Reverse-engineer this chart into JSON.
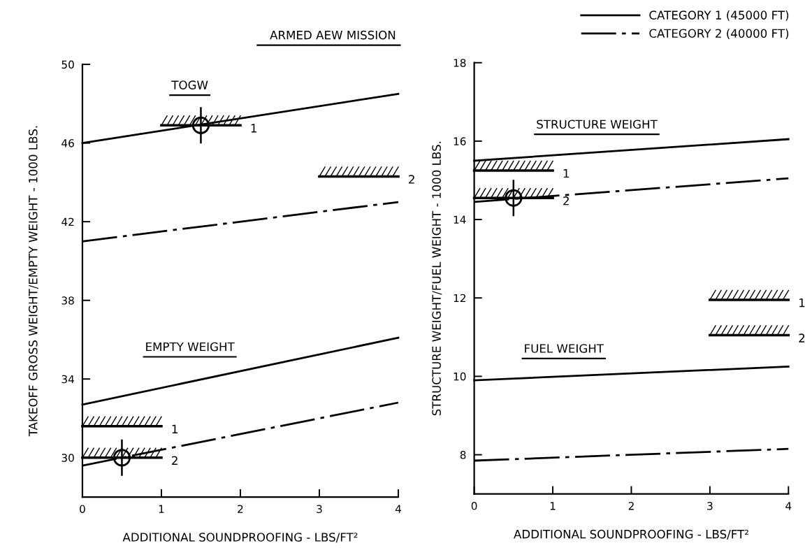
{
  "chart_data": [
    {
      "type": "line",
      "title": "ARMED AEW MISSION",
      "xlabel": "ADDITIONAL SOUNDPROOFING - LBS/FT²",
      "ylabel": "TAKEOFF GROSS WEIGHT/EMPTY WEIGHT - 1000 LBS.",
      "xlim": [
        0,
        4
      ],
      "xticks": [
        0,
        1,
        2,
        3,
        4
      ],
      "ylim": [
        28,
        50
      ],
      "yticks": [
        30,
        34,
        38,
        42,
        46,
        50
      ],
      "grid": false,
      "legend": "top right",
      "series": [
        {
          "name": "CATEGORY 1 (45000 FT)",
          "color": "#000000",
          "line_style": "solid",
          "x": [
            0,
            4
          ],
          "values": [
            46.0,
            48.5
          ]
        },
        {
          "name": "CATEGORY 2 (40000 FT)",
          "color": "#000000",
          "line_style": "dashdot",
          "x": [
            0,
            4
          ],
          "values": [
            41.0,
            43.0
          ]
        },
        {
          "color": "#000000",
          "line_style": "solid",
          "x": [
            0,
            4
          ],
          "values": [
            32.7,
            36.1
          ]
        },
        {
          "color": "#000000",
          "line_style": "dashdot",
          "x": [
            0,
            4
          ],
          "values": [
            29.6,
            32.8
          ]
        },
        {
          "type": "line",
          "name": "1",
          "color": "#000000",
          "line_style": "solid",
          "x": [
            1,
            2
          ],
          "values": [
            46.9,
            46.9
          ]
        },
        {
          "type": "line",
          "name": "2",
          "color": "#000000",
          "line_style": "solid",
          "x": [
            3,
            4
          ],
          "values": [
            44.3,
            44.3
          ]
        },
        {
          "type": "line",
          "name": "1",
          "color": "#000000",
          "line_style": "solid",
          "x": [
            0,
            1
          ],
          "values": [
            31.6,
            31.6
          ]
        },
        {
          "type": "line",
          "name": "2",
          "color": "#000000",
          "line_style": "solid",
          "x": [
            0,
            1
          ],
          "values": [
            30.0,
            30.0
          ]
        },
        {
          "type": "scatter",
          "color": "#000000",
          "marker": "circle",
          "x": [
            1.5,
            0.5
          ],
          "values": [
            46.9,
            30.0
          ]
        }
      ],
      "annotations": [
        "TOGW",
        "EMPTY WEIGHT"
      ]
    },
    {
      "type": "line",
      "xlabel": "ADDITIONAL SOUNDPROOFING - LBS/FT²",
      "ylabel": "STRUCTURE WEIGHT/FUEL WEIGHT - 1000 LBS.",
      "xlim": [
        0,
        4
      ],
      "xticks": [
        0,
        1,
        2,
        3,
        4
      ],
      "ylim": [
        7,
        18
      ],
      "yticks": [
        8,
        10,
        12,
        14,
        16,
        18
      ],
      "grid": false,
      "legend": "right",
      "series": [
        {
          "color": "#000000",
          "line_style": "solid",
          "x": [
            0,
            4
          ],
          "values": [
            15.5,
            16.05
          ]
        },
        {
          "color": "#000000",
          "line_style": "dashdot",
          "x": [
            0,
            4
          ],
          "values": [
            14.45,
            15.05
          ]
        },
        {
          "color": "#000000",
          "line_style": "solid",
          "x": [
            0,
            4
          ],
          "values": [
            9.9,
            10.25
          ]
        },
        {
          "color": "#000000",
          "line_style": "dashdot",
          "x": [
            0,
            4
          ],
          "values": [
            7.85,
            8.15
          ]
        },
        {
          "type": "line",
          "name": "1",
          "color": "#000000",
          "line_style": "solid",
          "x": [
            0,
            1
          ],
          "values": [
            15.25,
            15.25
          ]
        },
        {
          "type": "line",
          "name": "2",
          "color": "#000000",
          "line_style": "solid",
          "x": [
            0,
            1
          ],
          "values": [
            14.55,
            14.55
          ]
        },
        {
          "type": "line",
          "name": "1",
          "color": "#000000",
          "line_style": "solid",
          "x": [
            3,
            4
          ],
          "values": [
            11.95,
            11.95
          ]
        },
        {
          "type": "line",
          "name": "2",
          "color": "#000000",
          "line_style": "solid",
          "x": [
            3,
            4
          ],
          "values": [
            11.05,
            11.05
          ]
        },
        {
          "type": "scatter",
          "color": "#000000",
          "marker": "circle",
          "x": [
            0.5
          ],
          "values": [
            14.55
          ]
        }
      ],
      "annotations": [
        "STRUCTURE WEIGHT",
        "FUEL WEIGHT"
      ]
    }
  ]
}
